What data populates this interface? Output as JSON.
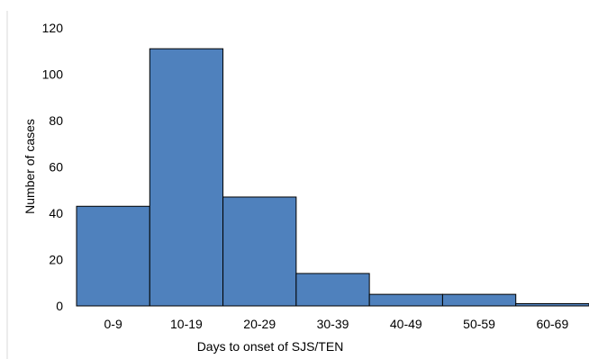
{
  "chart_data": {
    "type": "bar",
    "title": "",
    "xlabel": "Days to onset of SJS/TEN",
    "ylabel": "Number of cases",
    "categories": [
      "0-9",
      "10-19",
      "20-29",
      "30-39",
      "40-49",
      "50-59",
      "60-69"
    ],
    "values": [
      43,
      111,
      47,
      14,
      5,
      5,
      1
    ],
    "ylim": [
      0,
      120
    ],
    "yticks": [
      0,
      20,
      40,
      60,
      80,
      100,
      120
    ],
    "grid": false,
    "legend": "none",
    "bar_gap": 0,
    "colors": {
      "bar_fill": "#4f81bd",
      "bar_stroke": "#000000",
      "axis_line": "#d9d9d9",
      "text": "#000000"
    }
  }
}
